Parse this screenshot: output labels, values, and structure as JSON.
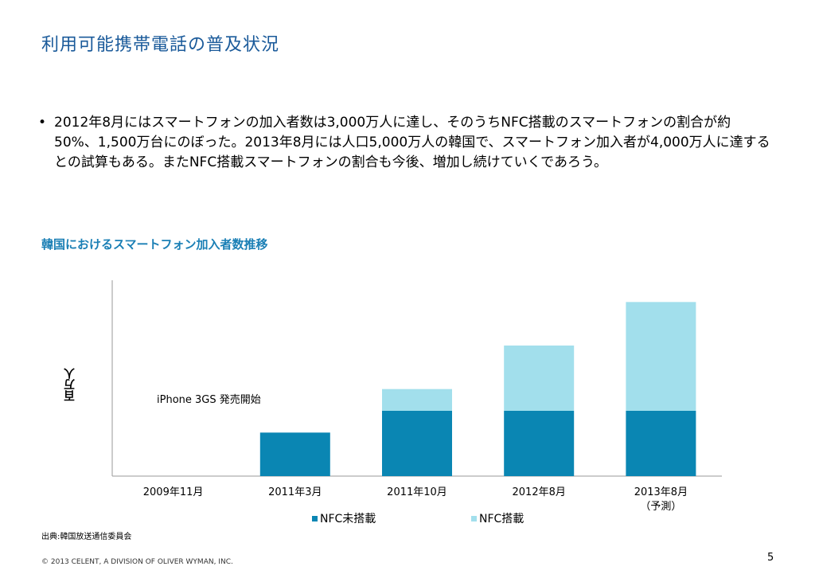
{
  "title": "利用可能携帯電話の普及状況",
  "bullet": "2012年8月にはスマートフォンの加入者数は3,000万人に達し、そのうちNFC搭載のスマートフォンの割合が約50%、1,500万台にのぼった。2013年8月には人口5,000万人の韓国で、スマートフォン加入者が4,000万人に達するとの試算もある。またNFC搭載スマートフォンの割合も今後、増加し続けていくであろう。",
  "chart_title": "韓国におけるスマートフォン加入者数推移",
  "source": "出典:韓国放送通信委員会",
  "copyright": "© 2013 CELENT, A DIVISION OF OLIVER WYMAN, INC.",
  "page_number": "5",
  "colors": {
    "nfc_none": "#0a86b3",
    "nfc": "#a2dfec",
    "title": "#1a5a9a",
    "chart_title": "#1a7fb5"
  },
  "chart_data": {
    "type": "bar",
    "stacked": true,
    "ylabel": "百万人",
    "categories": [
      "2009年11月",
      "2011年3月",
      "2011年10月",
      "2012年8月",
      "2013年8月（予測）"
    ],
    "series": [
      {
        "name": "NFC未搭載",
        "values": [
          0,
          10,
          15,
          15,
          15
        ]
      },
      {
        "name": "NFC搭載",
        "values": [
          0,
          0,
          5,
          15,
          25
        ]
      }
    ],
    "ylim": [
      0,
      45
    ],
    "annotation": "iPhone 3GS 発売開始",
    "grid": false,
    "legend": "bottom"
  }
}
